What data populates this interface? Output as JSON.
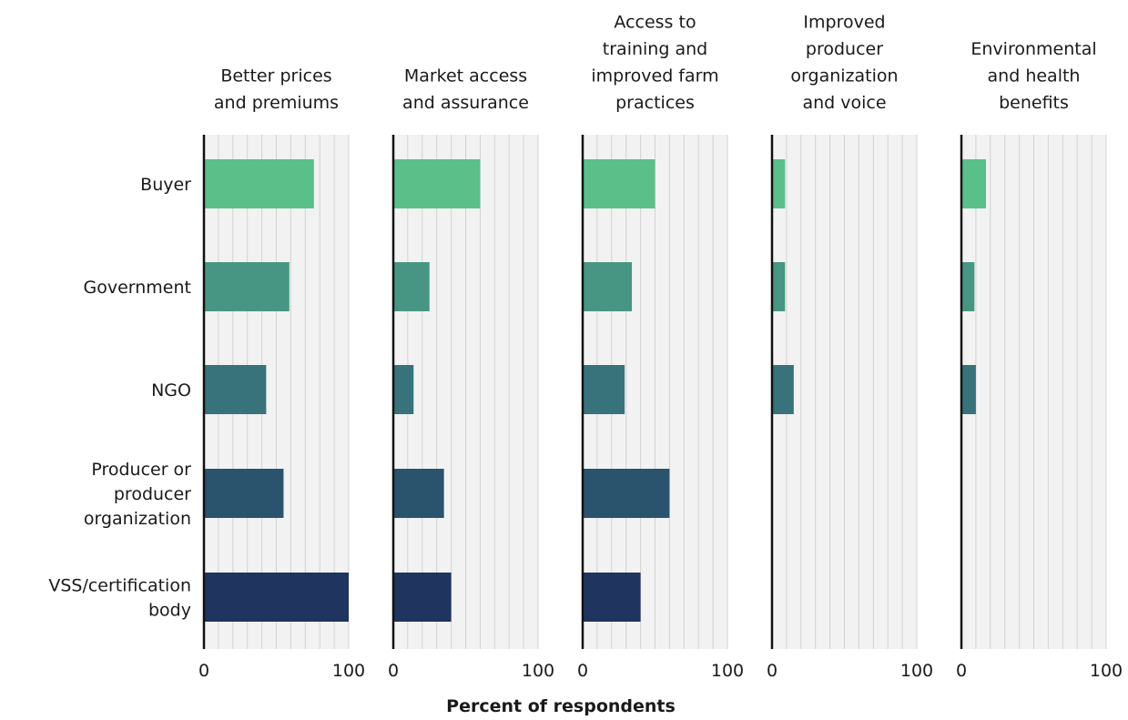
{
  "chart_data": {
    "type": "bar",
    "orientation": "horizontal",
    "layout": "small-multiples",
    "xlabel": "Percent of respondents",
    "xlim": [
      0,
      100
    ],
    "xticks": [
      0,
      100
    ],
    "grid": true,
    "categories": [
      [
        "Buyer"
      ],
      [
        "Government"
      ],
      [
        "NGO"
      ],
      [
        "Producer or",
        "producer",
        "organization"
      ],
      [
        "VSS/certification",
        "body"
      ]
    ],
    "category_colors": [
      "#5bbf8a",
      "#469683",
      "#38727a",
      "#2a536e",
      "#1f3560"
    ],
    "panels": [
      {
        "title": [
          "Better prices",
          "and premiums"
        ],
        "values": [
          76,
          59,
          43,
          55,
          100
        ]
      },
      {
        "title": [
          "Market access",
          "and assurance"
        ],
        "values": [
          60,
          25,
          14,
          35,
          40
        ]
      },
      {
        "title": [
          "Access to",
          "training and",
          "improved farm",
          "practices"
        ],
        "values": [
          50,
          34,
          29,
          60,
          40
        ]
      },
      {
        "title": [
          "Improved",
          "producer",
          "organization",
          "and voice"
        ],
        "values": [
          9,
          9,
          15,
          0,
          0
        ]
      },
      {
        "title": [
          "Environmental",
          "and health",
          "benefits"
        ],
        "values": [
          17,
          9,
          10,
          0,
          0
        ]
      }
    ]
  }
}
